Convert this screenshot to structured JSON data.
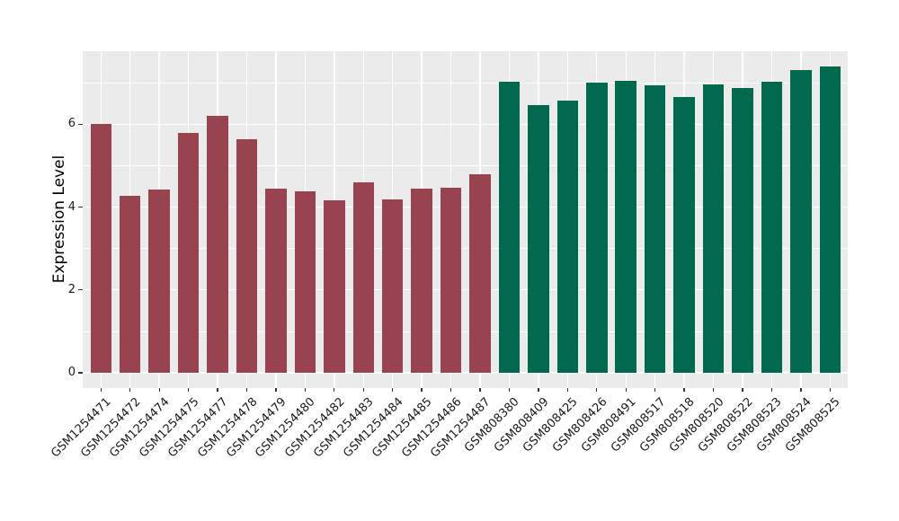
{
  "figure": {
    "background": "#FFFFFF",
    "panel_background": "#EBEBEB",
    "grid_color": "#FFFFFF",
    "axis_text_color": "#1A1A1A",
    "bar_color_group1": "#9A4350",
    "bar_color_group2": "#00694E"
  },
  "chart_data": {
    "type": "bar",
    "title": "",
    "xlabel": "",
    "ylabel": "Expression Level",
    "legend_position": "none",
    "grid": "on",
    "ylim": [
      0,
      7.77
    ],
    "yticks": [
      0,
      2,
      4,
      6
    ],
    "yticks_minor": [
      1,
      3,
      5,
      7
    ],
    "categories": [
      "GSM1254471",
      "GSM1254472",
      "GSM1254474",
      "GSM1254475",
      "GSM1254477",
      "GSM1254478",
      "GSM1254479",
      "GSM1254480",
      "GSM1254482",
      "GSM1254483",
      "GSM1254484",
      "GSM1254485",
      "GSM1254486",
      "GSM1254487",
      "GSM808380",
      "GSM808409",
      "GSM808425",
      "GSM808426",
      "GSM808491",
      "GSM808517",
      "GSM808518",
      "GSM808520",
      "GSM808522",
      "GSM808523",
      "GSM808524",
      "GSM808525"
    ],
    "values": [
      6.0,
      4.28,
      4.42,
      5.79,
      6.2,
      5.64,
      4.45,
      4.39,
      4.17,
      4.59,
      4.18,
      4.44,
      4.47,
      4.8,
      7.03,
      6.47,
      6.58,
      7.0,
      7.05,
      6.95,
      6.65,
      6.96,
      6.88,
      7.03,
      7.3,
      7.4
    ],
    "bar_colors": [
      "#9A4350",
      "#9A4350",
      "#9A4350",
      "#9A4350",
      "#9A4350",
      "#9A4350",
      "#9A4350",
      "#9A4350",
      "#9A4350",
      "#9A4350",
      "#9A4350",
      "#9A4350",
      "#9A4350",
      "#9A4350",
      "#00694E",
      "#00694E",
      "#00694E",
      "#00694E",
      "#00694E",
      "#00694E",
      "#00694E",
      "#00694E",
      "#00694E",
      "#00694E",
      "#00694E",
      "#00694E"
    ]
  }
}
